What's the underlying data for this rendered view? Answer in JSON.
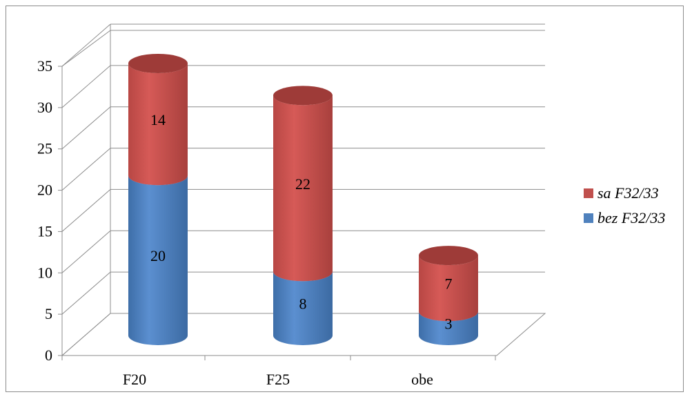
{
  "chart_data": {
    "type": "bar",
    "stacked": true,
    "style": "3d-cylinder",
    "categories": [
      "F20",
      "F25",
      "obe"
    ],
    "series": [
      {
        "name": "bez F32/33",
        "values": [
          20,
          8,
          3
        ],
        "color": "#4f81bd"
      },
      {
        "name": "sa F32/33",
        "values": [
          14,
          22,
          7
        ],
        "color": "#c0504d"
      }
    ],
    "ylim": [
      0,
      35
    ],
    "yticks": [
      "0",
      "5",
      "10",
      "15",
      "20",
      "25",
      "30",
      "35"
    ],
    "grid": true,
    "legend_position": "right",
    "legend_order": [
      "sa F32/33",
      "bez F32/33"
    ]
  }
}
